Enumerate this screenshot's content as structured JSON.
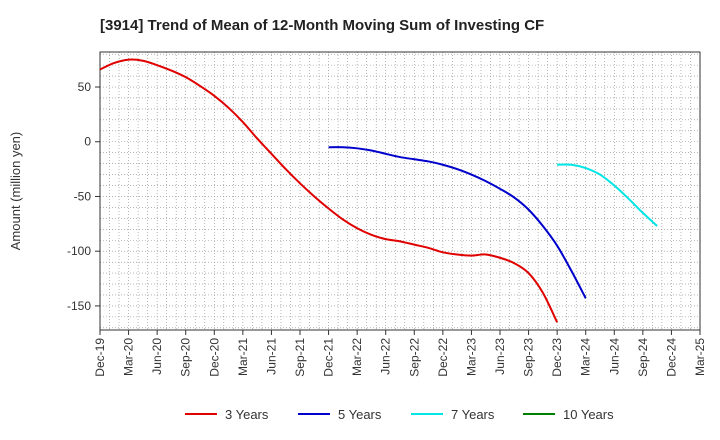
{
  "chart_data": {
    "type": "line",
    "title": "[3914]  Trend of Mean of 12-Month Moving Sum of Investing CF",
    "xlabel": "",
    "ylabel": "Amount (million yen)",
    "ylim": [
      -172,
      82
    ],
    "y_ticks": [
      50,
      0,
      -50,
      -100,
      -150
    ],
    "x_ticks": [
      "Dec-19",
      "Mar-20",
      "Jun-20",
      "Sep-20",
      "Dec-20",
      "Mar-21",
      "Jun-21",
      "Sep-21",
      "Dec-21",
      "Mar-22",
      "Jun-22",
      "Sep-22",
      "Dec-22",
      "Mar-23",
      "Jun-23",
      "Sep-23",
      "Dec-23",
      "Mar-24",
      "Jun-24",
      "Sep-24",
      "Dec-24",
      "Mar-25"
    ],
    "grid": true,
    "legend_position": "bottom",
    "series": [
      {
        "name": "3 Years",
        "color": "#e00000",
        "start_index": 0,
        "values": [
          66,
          72,
          75,
          74,
          70,
          65,
          59,
          51,
          42,
          31,
          18,
          3,
          -11,
          -25,
          -38,
          -50,
          -61,
          -71,
          -79,
          -85,
          -89,
          -91,
          -94,
          -97,
          -101,
          -103,
          -104,
          -103,
          -106,
          -111,
          -120,
          -138,
          -165
        ]
      },
      {
        "name": "5 Years",
        "color": "#0000cc",
        "start_index": 24,
        "values": [
          -5,
          -5,
          -6,
          -8,
          -11,
          -14,
          -16,
          -18,
          -21,
          -25,
          -30,
          -36,
          -43,
          -51,
          -62,
          -77,
          -95,
          -118,
          -143
        ]
      },
      {
        "name": "7 Years",
        "color": "#00e5e5",
        "start_index": 48,
        "values": [
          -21,
          -21,
          -24,
          -30,
          -40,
          -52,
          -65,
          -77
        ]
      },
      {
        "name": "10 Years",
        "color": "#008000",
        "start_index": 0,
        "values": []
      }
    ]
  }
}
